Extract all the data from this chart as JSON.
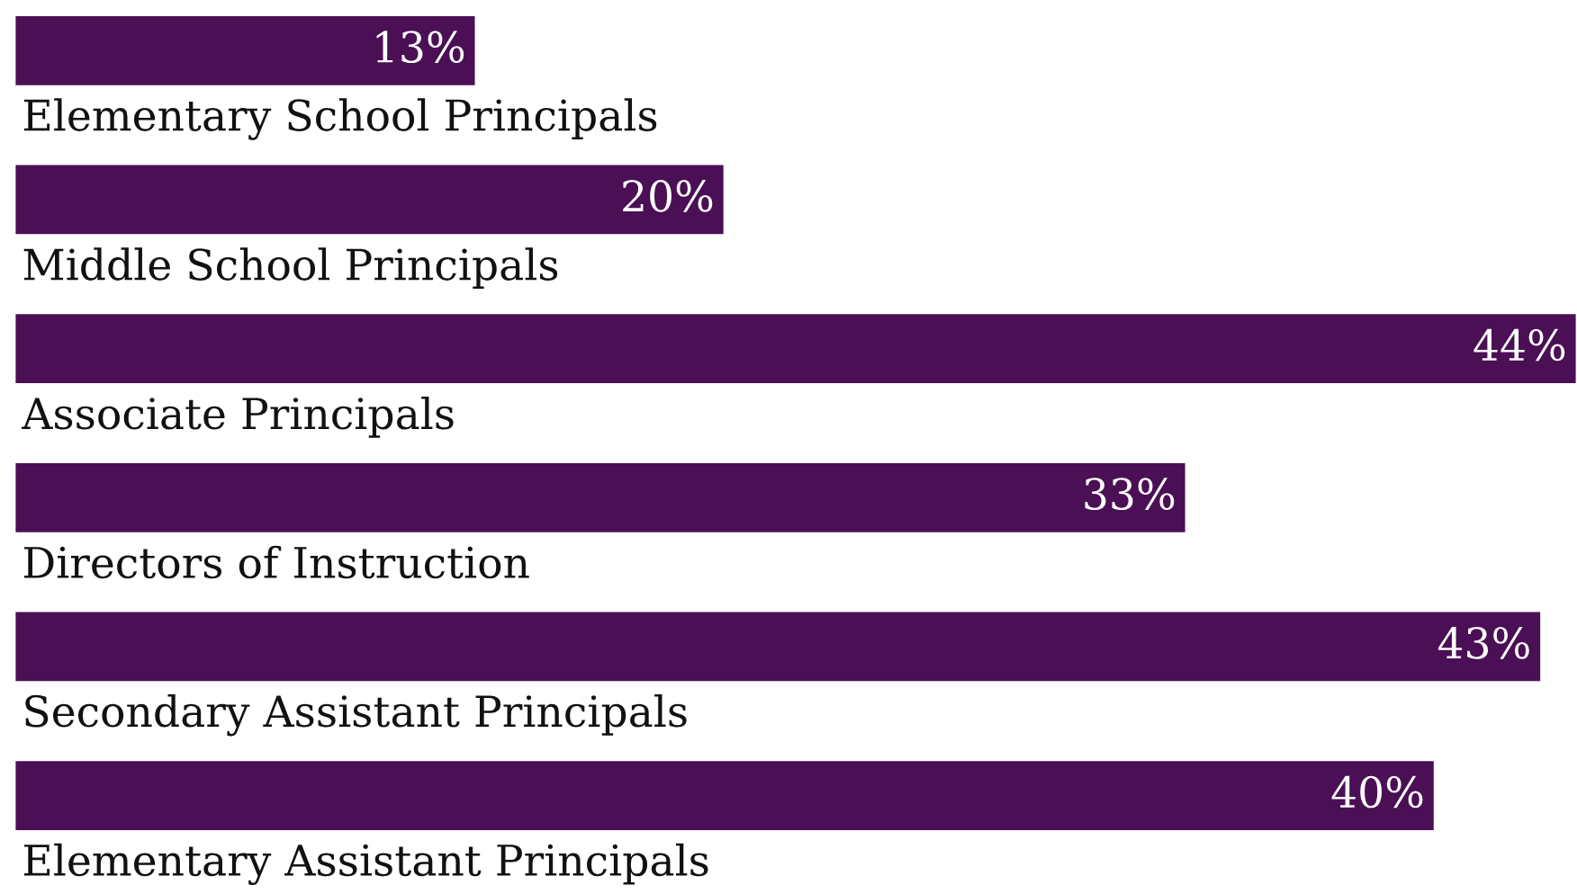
{
  "chart_data": {
    "type": "bar",
    "orientation": "horizontal",
    "data_labels": true,
    "categories": [
      "Elementary School Principals",
      "Middle School Principals",
      "Associate Principals",
      "Directors of Instruction",
      "Secondary Assistant Principals",
      "Elementary Assistant Principals"
    ],
    "values": [
      13,
      20,
      44,
      33,
      43,
      40
    ],
    "value_labels": [
      "13%",
      "20%",
      "44%",
      "33%",
      "43%",
      "40%"
    ],
    "color": "#4a0f55"
  }
}
